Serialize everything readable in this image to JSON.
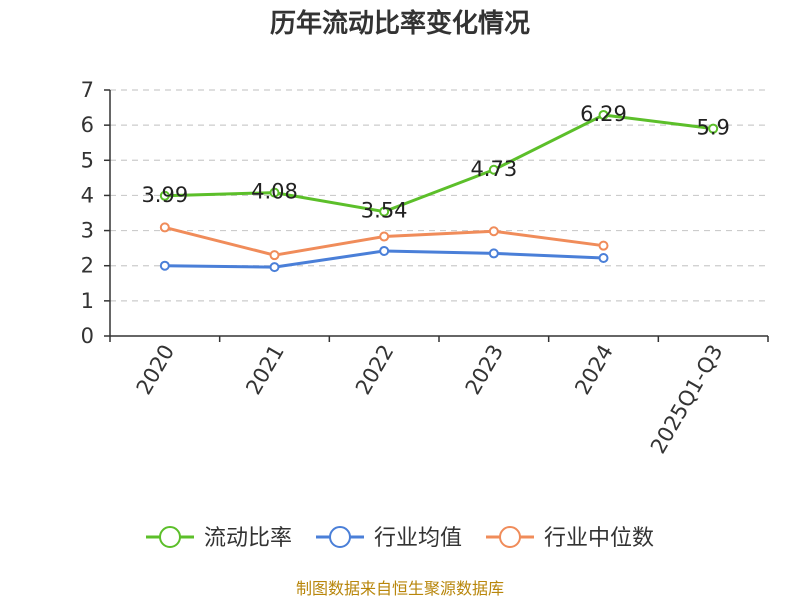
{
  "chart_data": {
    "type": "line",
    "title": "历年流动比率变化情况",
    "categories": [
      "2020",
      "2021",
      "2022",
      "2023",
      "2024",
      "2025Q1-Q3"
    ],
    "ylim": [
      0,
      7
    ],
    "yticks": [
      0,
      1,
      2,
      3,
      4,
      5,
      6,
      7
    ],
    "grid": true,
    "legend_position": "bottom",
    "series": [
      {
        "name": "流动比率",
        "color": "#5cbf2a",
        "values": [
          3.99,
          4.08,
          3.54,
          4.73,
          6.29,
          5.9
        ],
        "labels": [
          "3.99",
          "4.08",
          "3.54",
          "4.73",
          "6.29",
          "5.9"
        ],
        "show_labels": true
      },
      {
        "name": "行业均值",
        "color": "#4a7fd8",
        "values": [
          2.0,
          1.96,
          2.42,
          2.35,
          2.22,
          null
        ],
        "show_labels": false
      },
      {
        "name": "行业中位数",
        "color": "#f08c5a",
        "values": [
          3.09,
          2.3,
          2.83,
          2.98,
          2.57,
          null
        ],
        "show_labels": false
      }
    ]
  },
  "footer": {
    "source": "制图数据来自恒生聚源数据库"
  }
}
